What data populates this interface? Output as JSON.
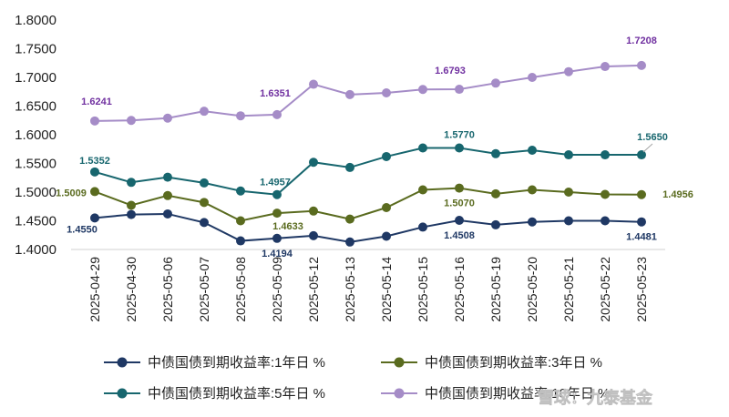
{
  "chart_data": {
    "type": "line",
    "title": "",
    "xlabel": "",
    "ylabel": "",
    "ylim": [
      1.4,
      1.8
    ],
    "ytick_step": 0.05,
    "ytick_decimals": 4,
    "categories": [
      "2025-04-29",
      "2025-04-30",
      "2025-05-06",
      "2025-05-07",
      "2025-05-08",
      "2025-05-09",
      "2025-05-12",
      "2025-05-13",
      "2025-05-14",
      "2025-05-15",
      "2025-05-16",
      "2025-05-19",
      "2025-05-20",
      "2025-05-21",
      "2025-05-22",
      "2025-05-23"
    ],
    "series": [
      {
        "name": "中债国债到期收益率:1年日 %",
        "color": "#1f3864",
        "values": [
          1.455,
          1.461,
          1.462,
          1.447,
          1.415,
          1.4194,
          1.424,
          1.413,
          1.423,
          1.439,
          1.4508,
          1.443,
          1.448,
          1.45,
          1.45,
          1.4481
        ],
        "labels": {
          "0": "1.4550",
          "5": "1.4194",
          "10": "1.4508",
          "15": "1.4481"
        }
      },
      {
        "name": "中债国债到期收益率:3年日 %",
        "color": "#5a6b1f",
        "values": [
          1.5009,
          1.477,
          1.494,
          1.482,
          1.45,
          1.4633,
          1.467,
          1.453,
          1.473,
          1.504,
          1.507,
          1.497,
          1.504,
          1.5,
          1.496,
          1.4956
        ],
        "labels": {
          "0": "1.5009",
          "5": "1.4633",
          "10": "1.5070",
          "15": "1.4956"
        }
      },
      {
        "name": "中债国债到期收益率:5年日 %",
        "color": "#17666e",
        "values": [
          1.5352,
          1.517,
          1.526,
          1.516,
          1.502,
          1.4957,
          1.552,
          1.543,
          1.562,
          1.577,
          1.577,
          1.567,
          1.573,
          1.565,
          1.565,
          1.565
        ],
        "labels": {
          "0": "1.5352",
          "5": "1.4957",
          "10": "1.5770",
          "15": "1.5650"
        }
      },
      {
        "name": "中债国债到期收益率:10年日 %",
        "color": "#a58cc7",
        "values": [
          1.6241,
          1.625,
          1.629,
          1.641,
          1.633,
          1.6351,
          1.688,
          1.67,
          1.673,
          1.679,
          1.6793,
          1.69,
          1.7,
          1.71,
          1.719,
          1.7208
        ],
        "labels": {
          "0": "1.6241",
          "5": "1.6351",
          "10": "1.6793",
          "15": "1.7208"
        }
      }
    ],
    "legend_position": "bottom",
    "grid": false
  },
  "colors": {
    "label_1y": "#1f3864",
    "label_3y": "#5a6b1f",
    "label_5y": "#17666e",
    "label_10y": "#7030a0"
  },
  "watermark": "雪球：九泰基金"
}
